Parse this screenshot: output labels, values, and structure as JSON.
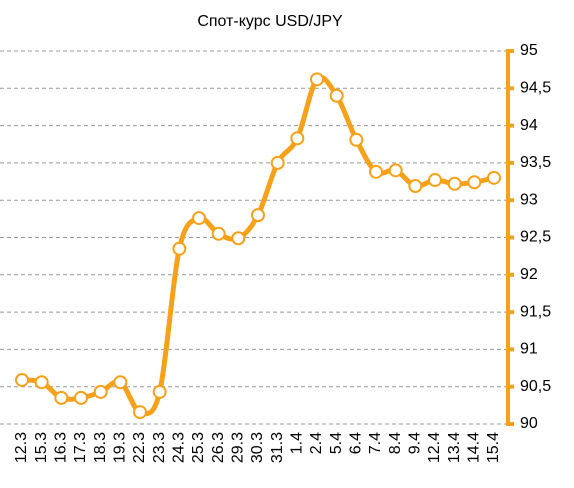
{
  "chart_data": {
    "type": "line",
    "title": "Спот-курс USD/JPY",
    "categories": [
      "12.3",
      "15.3",
      "16.3",
      "17.3",
      "18.3",
      "19.3",
      "22.3",
      "23.3",
      "24.3",
      "25.3",
      "26.3",
      "29.3",
      "30.3",
      "31.3",
      "1.4",
      "2.4",
      "5.4",
      "6.4",
      "7.4",
      "8.4",
      "9.4",
      "12.4",
      "13.4",
      "14.4",
      "15.4"
    ],
    "series": [
      {
        "name": "USD/JPY",
        "color": "#f7a11a",
        "values": [
          90.59,
          90.56,
          90.35,
          90.35,
          90.43,
          90.56,
          90.16,
          90.43,
          92.35,
          92.76,
          92.55,
          92.49,
          92.8,
          93.5,
          93.83,
          94.62,
          94.4,
          93.81,
          93.38,
          93.4,
          93.19,
          93.27,
          93.22,
          93.24,
          93.3
        ]
      }
    ],
    "ylim": [
      90,
      95
    ],
    "yticks": [
      90,
      {
        "value": 90.5,
        "label": "90,5"
      },
      91,
      {
        "value": 91.5,
        "label": "91,5"
      },
      92,
      {
        "value": 92.5,
        "label": "92,5"
      },
      93,
      {
        "value": 93.5,
        "label": "93,5"
      },
      94,
      {
        "value": 94.5,
        "label": "94,5"
      },
      95
    ],
    "grid": true
  }
}
